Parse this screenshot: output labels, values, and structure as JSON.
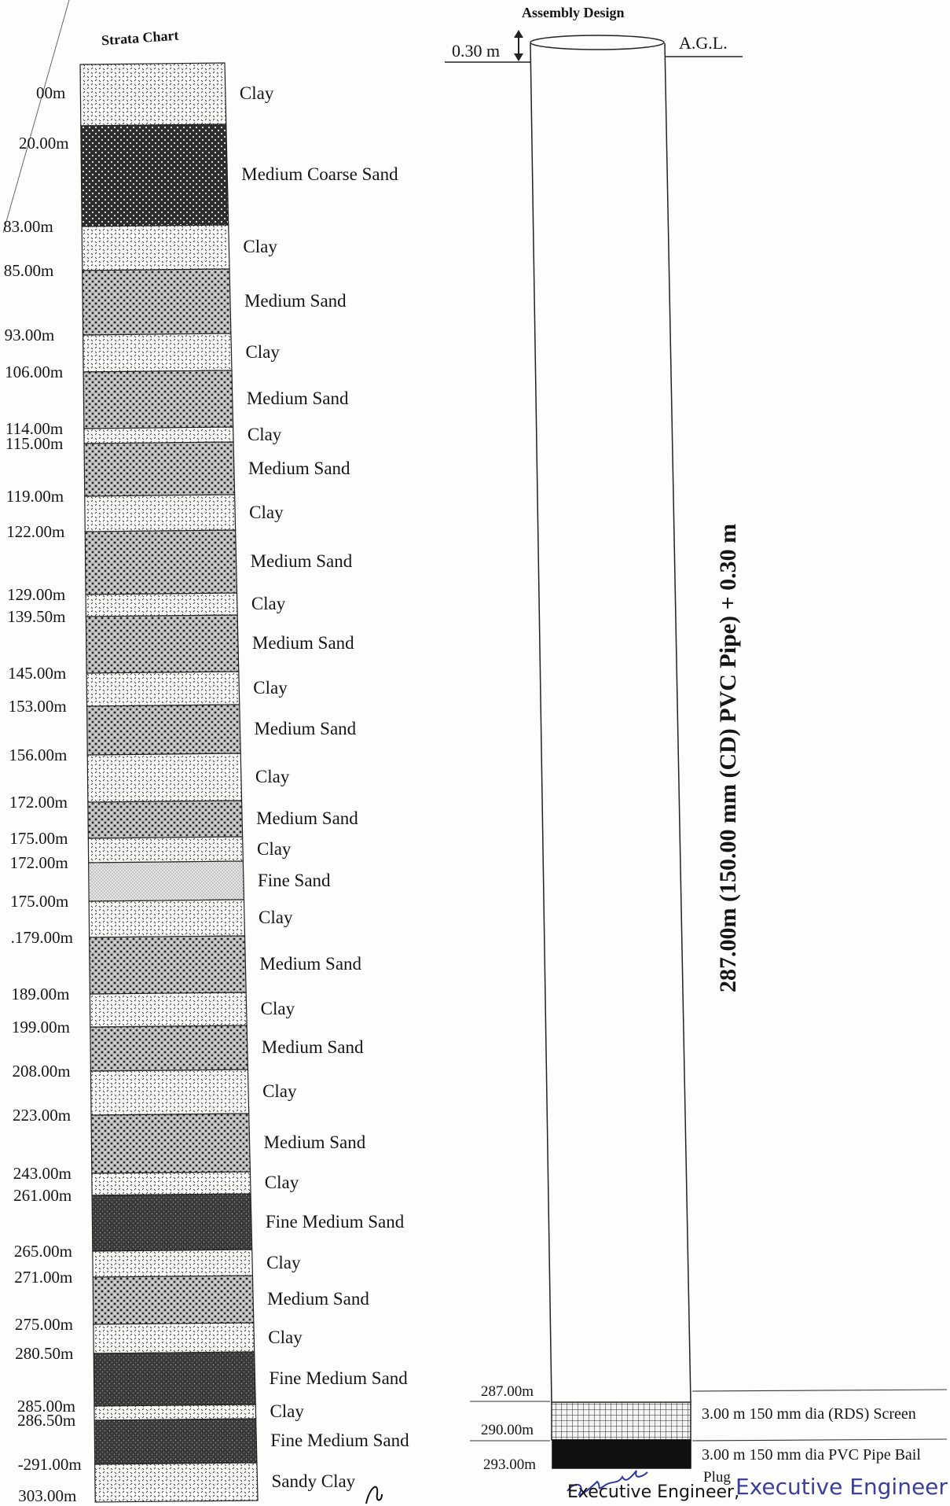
{
  "strata": {
    "title": "Strata Chart",
    "top_depth": "00m",
    "layers": [
      {
        "depth": "20.00m",
        "material": "Clay",
        "pattern": "clay"
      },
      {
        "depth": "83.00m",
        "material": "Medium Coarse Sand",
        "pattern": "coarse"
      },
      {
        "depth": "85.00m",
        "material": "Clay",
        "pattern": "clay"
      },
      {
        "depth": "93.00m",
        "material": "Medium Sand",
        "pattern": "medium"
      },
      {
        "depth": "106.00m",
        "material": "Clay",
        "pattern": "clay"
      },
      {
        "depth": "114.00m",
        "material": "Medium Sand",
        "pattern": "medium"
      },
      {
        "depth": "115.00m",
        "material": "Clay",
        "pattern": "clay"
      },
      {
        "depth": "119.00m",
        "material": "Medium Sand",
        "pattern": "medium"
      },
      {
        "depth": "122.00m",
        "material": "Clay",
        "pattern": "clay"
      },
      {
        "depth": "129.00m",
        "material": "Medium Sand",
        "pattern": "medium"
      },
      {
        "depth": "139.50m",
        "material": "Clay",
        "pattern": "clay"
      },
      {
        "depth": "145.00m",
        "material": "Medium Sand",
        "pattern": "medium"
      },
      {
        "depth": "153.00m",
        "material": "Clay",
        "pattern": "clay"
      },
      {
        "depth": "156.00m",
        "material": "Medium Sand",
        "pattern": "medium"
      },
      {
        "depth": "172.00m",
        "material": "Clay",
        "pattern": "clay"
      },
      {
        "depth": "175.00m",
        "material": "Medium Sand",
        "pattern": "medium"
      },
      {
        "depth": "172.00m",
        "material": "Clay",
        "pattern": "clay"
      },
      {
        "depth": "175.00m",
        "material": "Fine Sand",
        "pattern": "fine"
      },
      {
        "depth": ".179.00m",
        "material": "Clay",
        "pattern": "clay"
      },
      {
        "depth": "189.00m",
        "material": "Medium Sand",
        "pattern": "medium"
      },
      {
        "depth": "199.00m",
        "material": "Clay",
        "pattern": "clay"
      },
      {
        "depth": "208.00m",
        "material": "Medium Sand",
        "pattern": "medium"
      },
      {
        "depth": "223.00m",
        "material": "Clay",
        "pattern": "clay"
      },
      {
        "depth": "243.00m",
        "material": "Medium Sand",
        "pattern": "medium"
      },
      {
        "depth": "261.00m",
        "material": "Clay",
        "pattern": "clay"
      },
      {
        "depth": "265.00m",
        "material": "Fine Medium Sand",
        "pattern": "finemed"
      },
      {
        "depth": "271.00m",
        "material": "Clay",
        "pattern": "clay"
      },
      {
        "depth": "275.00m",
        "material": "Medium Sand",
        "pattern": "medium"
      },
      {
        "depth": "280.50m",
        "material": "Clay",
        "pattern": "clay"
      },
      {
        "depth": "285.00m",
        "material": "Fine Medium Sand",
        "pattern": "finemed"
      },
      {
        "depth": "286.50m",
        "material": "Clay",
        "pattern": "clay"
      },
      {
        "depth": "-291.00m",
        "material": "Fine Medium Sand",
        "pattern": "finemed"
      },
      {
        "depth": "303.00m",
        "material": "Sandy Clay",
        "pattern": "clay"
      }
    ]
  },
  "assembly": {
    "title": "Assembly Design",
    "above_ground": "0.30 m",
    "agl_label": "A.G.L.",
    "pipe_label": "287.00m (150.00 mm (CD) PVC Pipe) + 0.30 m",
    "screen_top": "287.00m",
    "screen_label": "3.00 m 150 mm dia (RDS) Screen",
    "plug_top": "290.00m",
    "plug_label_line1": "3.00 m 150 mm dia PVC Pipe Bail",
    "plug_label_line2": "Plug",
    "bottom": "293.00m"
  },
  "signature": {
    "stamp_left": "Executive Engineer,",
    "stamp_right": "Executive Engineer"
  }
}
